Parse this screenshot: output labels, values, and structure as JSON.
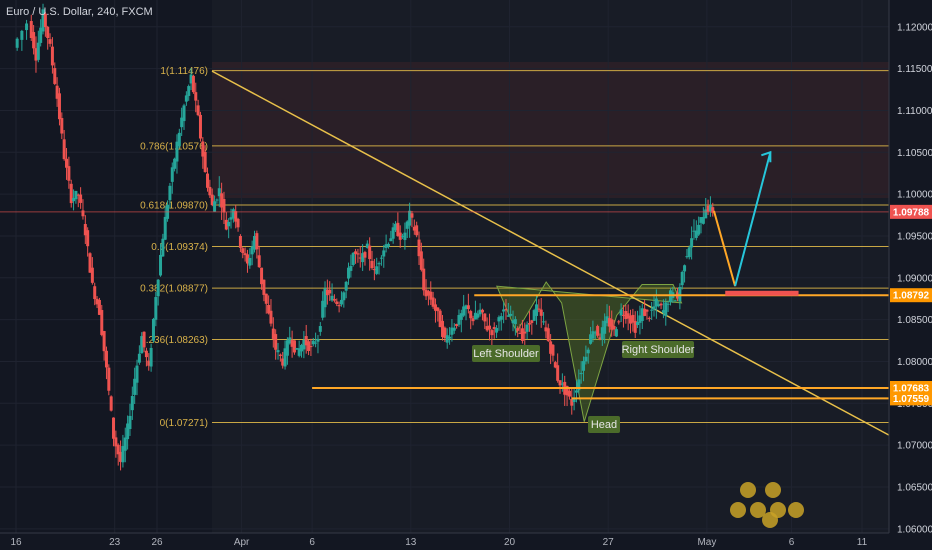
{
  "header": {
    "title": "Euro / U.S. Dollar, 240, FXCM"
  },
  "colors": {
    "up": "#26a69a",
    "down": "#ef5350",
    "fib": "#e8c04a",
    "orange": "#ffa726",
    "projection": "#26c6da",
    "red_level": "#ef5350",
    "pattern": "#6b8e23"
  },
  "chart_data": {
    "type": "candlestick",
    "ylim": [
      1.0595,
      1.1232
    ],
    "y_ticks": [
      "1.12000",
      "1.11500",
      "1.11000",
      "1.10500",
      "1.10000",
      "1.09500",
      "1.09000",
      "1.08500",
      "1.08000",
      "1.07500",
      "1.07000",
      "1.06500",
      "1.06000"
    ],
    "y_tick_values": [
      1.12,
      1.115,
      1.11,
      1.105,
      1.1,
      1.095,
      1.09,
      1.085,
      1.08,
      1.075,
      1.07,
      1.065,
      1.06
    ],
    "x_ticks": [
      "16",
      "23",
      "26",
      "Apr",
      "6",
      "13",
      "20",
      "27",
      "May",
      "6",
      "11"
    ],
    "x_tick_days": [
      0,
      7,
      10,
      16,
      21,
      28,
      35,
      42,
      49,
      55,
      60
    ],
    "last_price": "1.09788",
    "last_price_value": 1.09788,
    "fib_levels": [
      {
        "label": "1(1.11476)",
        "value": 1.11476
      },
      {
        "label": "0.786(1.10576)",
        "value": 1.10576
      },
      {
        "label": "0.618(1.09870)",
        "value": 1.0987
      },
      {
        "label": "0.5(1.09374)",
        "value": 1.09374
      },
      {
        "label": "0.382(1.08877)",
        "value": 1.08877
      },
      {
        "label": "0.236(1.08263)",
        "value": 1.08263
      },
      {
        "label": "0(1.07271)",
        "value": 1.07271
      }
    ],
    "level_tags": [
      {
        "label": "1.08792",
        "value": 1.08792
      },
      {
        "label": "1.07683",
        "value": 1.07683
      },
      {
        "label": "1.07559",
        "value": 1.07559
      }
    ],
    "pattern_labels": {
      "left": "Left Shoulder",
      "head": "Head",
      "right": "Right Shoulder"
    },
    "watermark": "2 2 2 3 2 2 2",
    "price_path": [
      [
        0,
        1.1175
      ],
      [
        1,
        1.1205
      ],
      [
        1.5,
        1.1165
      ],
      [
        2,
        1.1215
      ],
      [
        2.5,
        1.1175
      ],
      [
        3,
        1.1115
      ],
      [
        3.5,
        1.1045
      ],
      [
        4,
        1.0995
      ],
      [
        4.5,
        1.1
      ],
      [
        5,
        1.0955
      ],
      [
        5.5,
        1.089
      ],
      [
        6,
        1.086
      ],
      [
        6.5,
        1.079
      ],
      [
        7,
        1.071
      ],
      [
        7.5,
        1.068
      ],
      [
        8,
        1.072
      ],
      [
        8.5,
        1.078
      ],
      [
        9,
        1.083
      ],
      [
        9.5,
        1.079
      ],
      [
        10,
        1.088
      ],
      [
        10.5,
        1.095
      ],
      [
        11,
        1.101
      ],
      [
        11.5,
        1.106
      ],
      [
        12,
        1.1105
      ],
      [
        12.5,
        1.114
      ],
      [
        13,
        1.109
      ],
      [
        13.5,
        1.1025
      ],
      [
        14,
        1.0985
      ],
      [
        14.5,
        1.1005
      ],
      [
        15,
        1.096
      ],
      [
        15.5,
        1.0985
      ],
      [
        16,
        1.094
      ],
      [
        16.5,
        1.0915
      ],
      [
        17,
        1.095
      ],
      [
        17.5,
        1.0895
      ],
      [
        18,
        1.0855
      ],
      [
        18.5,
        1.0815
      ],
      [
        19,
        1.08
      ],
      [
        19.5,
        1.083
      ],
      [
        20,
        1.081
      ],
      [
        20.5,
        1.0825
      ],
      [
        21,
        1.0815
      ],
      [
        21.5,
        1.083
      ],
      [
        22,
        1.0885
      ],
      [
        22.5,
        1.0875
      ],
      [
        23,
        1.087
      ],
      [
        23.5,
        1.0895
      ],
      [
        24,
        1.093
      ],
      [
        24.5,
        1.092
      ],
      [
        25,
        1.0935
      ],
      [
        25.5,
        1.0905
      ],
      [
        26,
        1.093
      ],
      [
        26.5,
        1.0945
      ],
      [
        27,
        1.096
      ],
      [
        27.5,
        1.0945
      ],
      [
        28,
        1.0975
      ],
      [
        28.5,
        1.095
      ],
      [
        29,
        1.0885
      ],
      [
        29.5,
        1.0875
      ],
      [
        30,
        1.0855
      ],
      [
        30.5,
        1.0825
      ],
      [
        31,
        1.084
      ],
      [
        31.5,
        1.085
      ],
      [
        32,
        1.0865
      ],
      [
        32.5,
        1.085
      ],
      [
        33,
        1.086
      ],
      [
        33.5,
        1.084
      ],
      [
        34,
        1.0835
      ],
      [
        34.5,
        1.086
      ],
      [
        35,
        1.0855
      ],
      [
        35.5,
        1.0845
      ],
      [
        36,
        1.083
      ],
      [
        36.5,
        1.0845
      ],
      [
        37,
        1.0865
      ],
      [
        37.5,
        1.0845
      ],
      [
        38,
        1.0815
      ],
      [
        38.5,
        1.078
      ],
      [
        39,
        1.0765
      ],
      [
        39.5,
        1.075
      ],
      [
        40,
        1.078
      ],
      [
        40.5,
        1.081
      ],
      [
        41,
        1.084
      ],
      [
        41.5,
        1.083
      ],
      [
        42,
        1.085
      ],
      [
        42.5,
        1.0835
      ],
      [
        43,
        1.086
      ],
      [
        43.5,
        1.0855
      ],
      [
        44,
        1.084
      ],
      [
        44.5,
        1.086
      ],
      [
        45,
        1.0855
      ],
      [
        45.5,
        1.087
      ],
      [
        46,
        1.086
      ],
      [
        46.5,
        1.088
      ],
      [
        47,
        1.0875
      ],
      [
        47.5,
        1.092
      ],
      [
        48,
        1.095
      ],
      [
        48.5,
        1.096
      ],
      [
        49,
        1.0985
      ],
      [
        49.5,
        1.098
      ]
    ],
    "projection": [
      [
        49.5,
        1.098
      ],
      [
        51,
        1.089
      ],
      [
        53.5,
        1.105
      ]
    ]
  }
}
